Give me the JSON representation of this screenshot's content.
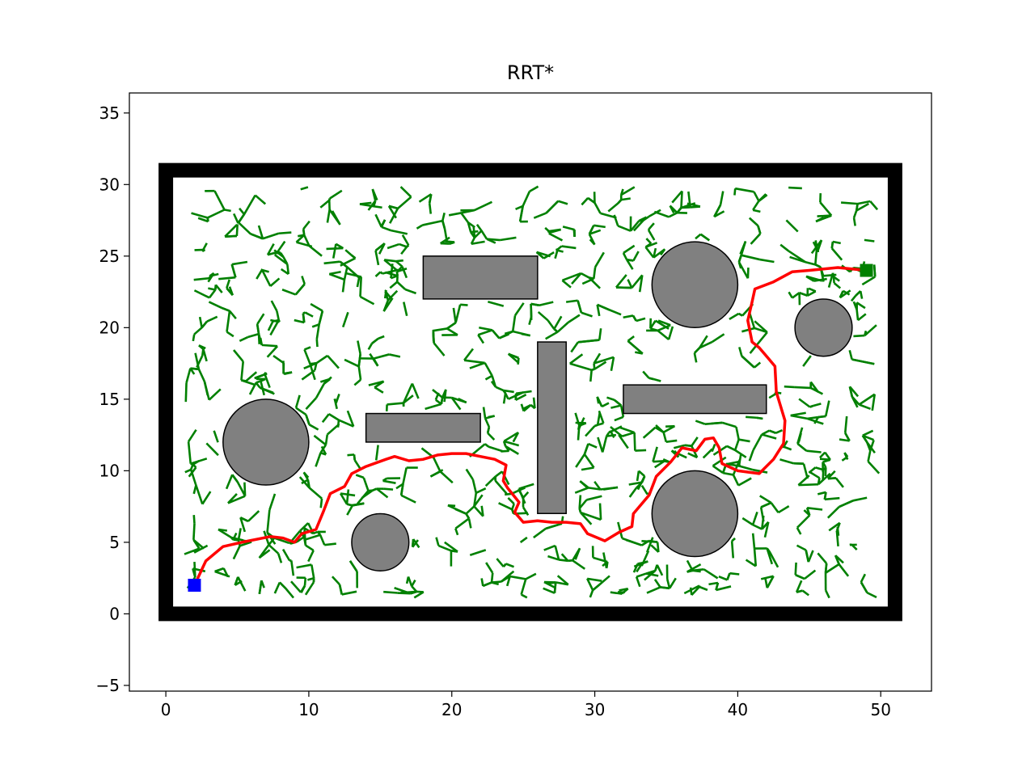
{
  "chart_data": {
    "type": "line",
    "title": "RRT*",
    "xlabel": "",
    "ylabel": "",
    "xlim": [
      -2.55,
      53.55
    ],
    "ylim": [
      -5.4,
      36.4
    ],
    "xticks": [
      0,
      10,
      20,
      30,
      40,
      50
    ],
    "yticks": [
      -5,
      0,
      5,
      10,
      15,
      20,
      25,
      30,
      35
    ],
    "grid": false,
    "legend": "none",
    "colors": {
      "boundary": "#000000",
      "obstacle_fill": "#808080",
      "tree": "#008000",
      "path": "#ff0000",
      "start": "#0000ff",
      "goal": "#008000"
    },
    "boundary": [
      [
        0,
        0
      ],
      [
        51,
        0
      ],
      [
        51,
        31
      ],
      [
        0,
        31
      ]
    ],
    "circle_obstacles": [
      {
        "cx": 7,
        "cy": 12,
        "r": 3
      },
      {
        "cx": 15,
        "cy": 5,
        "r": 2
      },
      {
        "cx": 37,
        "cy": 23,
        "r": 3
      },
      {
        "cx": 37,
        "cy": 7,
        "r": 3
      },
      {
        "cx": 46,
        "cy": 20,
        "r": 2
      }
    ],
    "rect_obstacles": [
      {
        "x": 18,
        "y": 22,
        "w": 8,
        "h": 3
      },
      {
        "x": 14,
        "y": 12,
        "w": 8,
        "h": 2
      },
      {
        "x": 26,
        "y": 7,
        "w": 2,
        "h": 12
      },
      {
        "x": 32,
        "y": 14,
        "w": 10,
        "h": 2
      }
    ],
    "start": [
      2,
      2
    ],
    "goal": [
      49,
      24
    ],
    "path": [
      [
        2,
        2
      ],
      [
        2.8,
        3.7
      ],
      [
        4,
        4.7
      ],
      [
        5.3,
        5
      ],
      [
        7.3,
        5.4
      ],
      [
        8.2,
        5.3
      ],
      [
        9,
        5
      ],
      [
        9.5,
        5.6
      ],
      [
        10.5,
        5.9
      ],
      [
        11,
        7.1
      ],
      [
        11.5,
        8.4
      ],
      [
        12.5,
        8.9
      ],
      [
        13,
        9.8
      ],
      [
        14,
        10.3
      ],
      [
        15.4,
        10.8
      ],
      [
        16,
        11
      ],
      [
        17,
        10.7
      ],
      [
        18,
        10.8
      ],
      [
        19,
        11.1
      ],
      [
        20,
        11.2
      ],
      [
        21,
        11.2
      ],
      [
        22,
        11
      ],
      [
        23,
        10.8
      ],
      [
        23.8,
        10.4
      ],
      [
        23.6,
        9.3
      ],
      [
        23.9,
        8.8
      ],
      [
        24.7,
        7.8
      ],
      [
        24.4,
        7.1
      ],
      [
        25,
        6.4
      ],
      [
        26,
        6.5
      ],
      [
        27,
        6.4
      ],
      [
        28,
        6.4
      ],
      [
        29,
        6.3
      ],
      [
        29.5,
        5.6
      ],
      [
        30.7,
        5.1
      ],
      [
        31.7,
        5.7
      ],
      [
        32.6,
        6.1
      ],
      [
        32.7,
        7
      ],
      [
        33.8,
        8.3
      ],
      [
        34.3,
        9.6
      ],
      [
        35.3,
        10.6
      ],
      [
        36.1,
        11.6
      ],
      [
        37.1,
        11.4
      ],
      [
        37.7,
        12.2
      ],
      [
        38.3,
        12.3
      ],
      [
        38.7,
        11.6
      ],
      [
        38.9,
        10.5
      ],
      [
        40,
        10
      ],
      [
        41.5,
        9.8
      ],
      [
        42.5,
        10.8
      ],
      [
        43.2,
        11.9
      ],
      [
        43.3,
        13.5
      ],
      [
        42.7,
        15.5
      ],
      [
        42.6,
        17.3
      ],
      [
        42.1,
        17.9
      ],
      [
        41.5,
        18.6
      ],
      [
        41,
        19
      ],
      [
        40.7,
        20.5
      ],
      [
        41,
        21.8
      ],
      [
        41.2,
        22.7
      ],
      [
        42.5,
        23.2
      ],
      [
        43.8,
        23.9
      ],
      [
        45,
        24
      ],
      [
        47,
        24.2
      ],
      [
        49,
        24
      ]
    ]
  }
}
